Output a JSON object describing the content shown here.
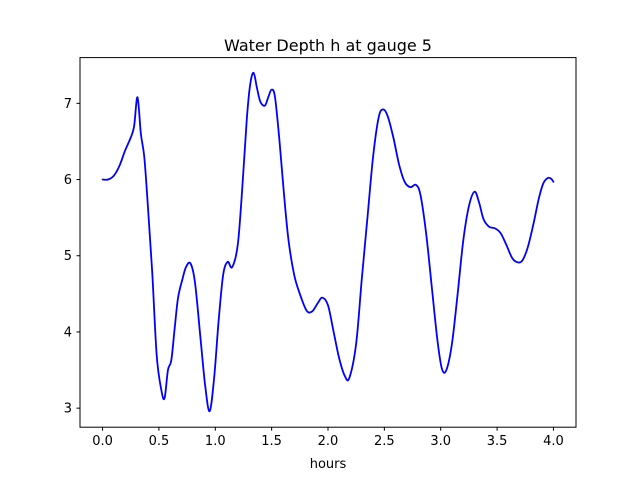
{
  "chart_data": {
    "type": "line",
    "title": "Water Depth h at gauge 5",
    "xlabel": "hours",
    "ylabel": "",
    "xlim": [
      -0.2,
      4.2
    ],
    "ylim": [
      2.75,
      7.6
    ],
    "x_ticks": [
      0.0,
      0.5,
      1.0,
      1.5,
      2.0,
      2.5,
      3.0,
      3.5,
      4.0
    ],
    "x_tick_labels": [
      "0.0",
      "0.5",
      "1.0",
      "1.5",
      "2.0",
      "2.5",
      "3.0",
      "3.5",
      "4.0"
    ],
    "y_ticks": [
      3,
      4,
      5,
      6,
      7
    ],
    "y_tick_labels": [
      "3",
      "4",
      "5",
      "6",
      "7"
    ],
    "grid": false,
    "series": [
      {
        "color": "#0000ff",
        "points": [
          [
            0.0,
            6.0
          ],
          [
            0.05,
            6.0
          ],
          [
            0.1,
            6.05
          ],
          [
            0.15,
            6.18
          ],
          [
            0.2,
            6.38
          ],
          [
            0.25,
            6.55
          ],
          [
            0.28,
            6.7
          ],
          [
            0.31,
            7.08
          ],
          [
            0.34,
            6.6
          ],
          [
            0.37,
            6.3
          ],
          [
            0.4,
            5.7
          ],
          [
            0.44,
            4.8
          ],
          [
            0.48,
            3.7
          ],
          [
            0.52,
            3.25
          ],
          [
            0.55,
            3.13
          ],
          [
            0.58,
            3.5
          ],
          [
            0.61,
            3.63
          ],
          [
            0.64,
            4.05
          ],
          [
            0.67,
            4.45
          ],
          [
            0.71,
            4.7
          ],
          [
            0.74,
            4.85
          ],
          [
            0.78,
            4.9
          ],
          [
            0.82,
            4.65
          ],
          [
            0.87,
            3.9
          ],
          [
            0.91,
            3.3
          ],
          [
            0.95,
            2.96
          ],
          [
            0.99,
            3.4
          ],
          [
            1.03,
            4.15
          ],
          [
            1.07,
            4.75
          ],
          [
            1.11,
            4.92
          ],
          [
            1.15,
            4.85
          ],
          [
            1.2,
            5.15
          ],
          [
            1.24,
            5.9
          ],
          [
            1.28,
            6.8
          ],
          [
            1.31,
            7.25
          ],
          [
            1.34,
            7.4
          ],
          [
            1.37,
            7.2
          ],
          [
            1.4,
            7.02
          ],
          [
            1.44,
            6.97
          ],
          [
            1.47,
            7.08
          ],
          [
            1.5,
            7.18
          ],
          [
            1.53,
            7.08
          ],
          [
            1.57,
            6.5
          ],
          [
            1.61,
            5.8
          ],
          [
            1.65,
            5.2
          ],
          [
            1.7,
            4.75
          ],
          [
            1.75,
            4.5
          ],
          [
            1.81,
            4.28
          ],
          [
            1.86,
            4.27
          ],
          [
            1.91,
            4.38
          ],
          [
            1.95,
            4.45
          ],
          [
            2.0,
            4.35
          ],
          [
            2.05,
            4.0
          ],
          [
            2.1,
            3.65
          ],
          [
            2.15,
            3.42
          ],
          [
            2.19,
            3.4
          ],
          [
            2.25,
            3.85
          ],
          [
            2.3,
            4.7
          ],
          [
            2.35,
            5.5
          ],
          [
            2.4,
            6.3
          ],
          [
            2.45,
            6.82
          ],
          [
            2.49,
            6.92
          ],
          [
            2.53,
            6.83
          ],
          [
            2.58,
            6.55
          ],
          [
            2.63,
            6.2
          ],
          [
            2.68,
            5.97
          ],
          [
            2.73,
            5.9
          ],
          [
            2.78,
            5.93
          ],
          [
            2.82,
            5.8
          ],
          [
            2.87,
            5.3
          ],
          [
            2.92,
            4.6
          ],
          [
            2.97,
            3.9
          ],
          [
            3.01,
            3.52
          ],
          [
            3.05,
            3.5
          ],
          [
            3.1,
            3.85
          ],
          [
            3.15,
            4.5
          ],
          [
            3.2,
            5.2
          ],
          [
            3.25,
            5.65
          ],
          [
            3.3,
            5.84
          ],
          [
            3.34,
            5.7
          ],
          [
            3.38,
            5.48
          ],
          [
            3.43,
            5.38
          ],
          [
            3.48,
            5.36
          ],
          [
            3.53,
            5.3
          ],
          [
            3.58,
            5.15
          ],
          [
            3.63,
            4.98
          ],
          [
            3.67,
            4.92
          ],
          [
            3.72,
            4.93
          ],
          [
            3.77,
            5.1
          ],
          [
            3.82,
            5.4
          ],
          [
            3.87,
            5.75
          ],
          [
            3.91,
            5.95
          ],
          [
            3.95,
            6.02
          ],
          [
            3.98,
            6.01
          ],
          [
            4.0,
            5.97
          ]
        ]
      }
    ]
  }
}
